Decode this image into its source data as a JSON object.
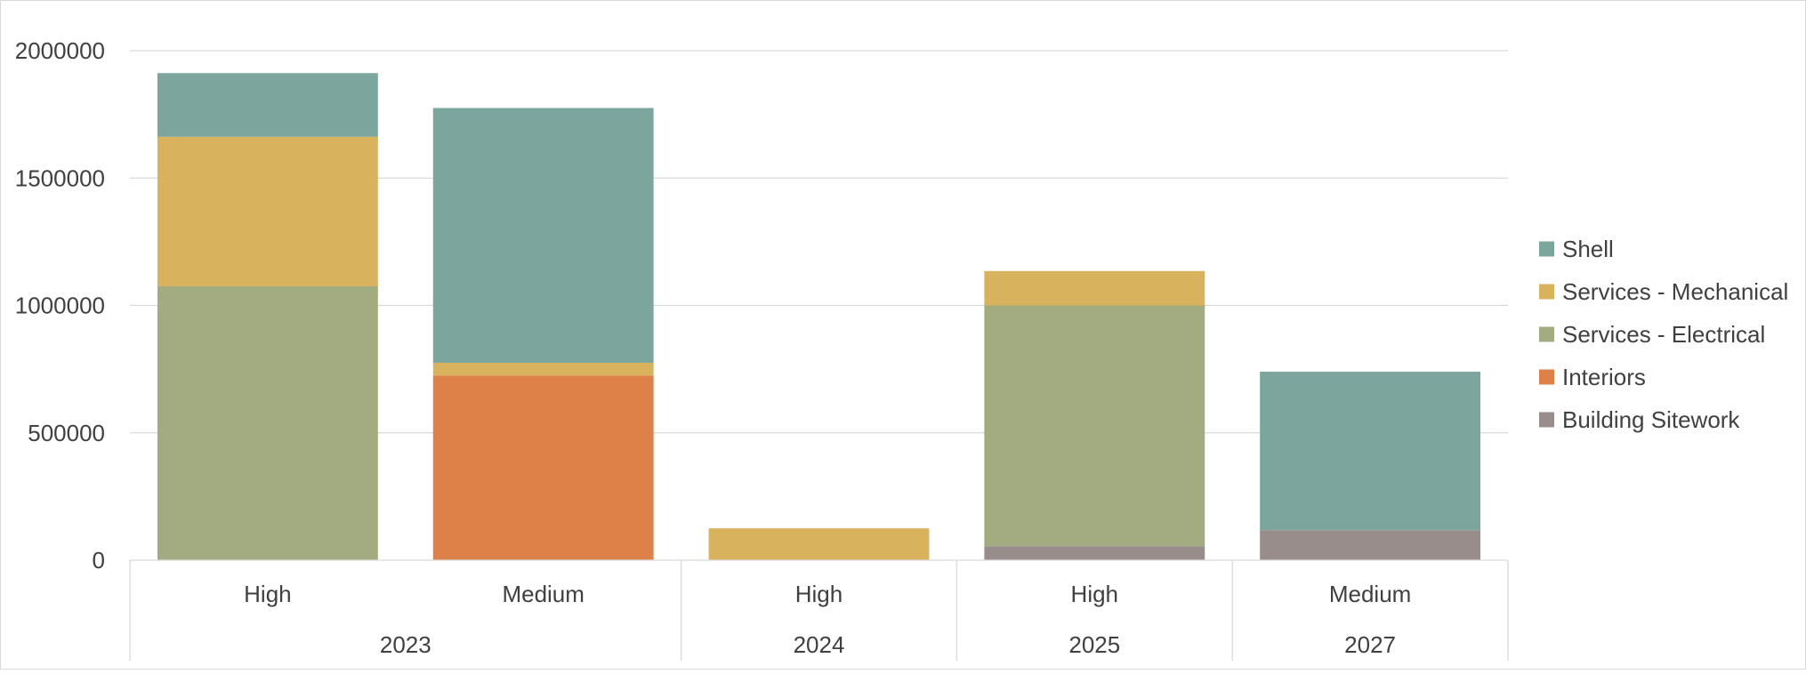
{
  "chart_data": {
    "type": "bar",
    "stacked": true,
    "categories": [
      "High",
      "Medium",
      "High",
      "High",
      "Medium"
    ],
    "groups": [
      {
        "label": "2023",
        "span": 2
      },
      {
        "label": "2024",
        "span": 1
      },
      {
        "label": "2025",
        "span": 1
      },
      {
        "label": "2027",
        "span": 1
      }
    ],
    "series": [
      {
        "name": "Building Sitework",
        "color": "#998d8c",
        "values": [
          0,
          0,
          0,
          55000,
          118000
        ]
      },
      {
        "name": "Interiors",
        "color": "#de8148",
        "values": [
          0,
          725000,
          0,
          0,
          0
        ]
      },
      {
        "name": "Services - Electrical",
        "color": "#a3ac80",
        "values": [
          1075000,
          0,
          0,
          945000,
          0
        ]
      },
      {
        "name": "Services - Mechanical",
        "color": "#d8b25c",
        "values": [
          587000,
          50000,
          125000,
          135000,
          0
        ]
      },
      {
        "name": "Shell",
        "color": "#7ca69d",
        "values": [
          250000,
          1000000,
          0,
          0,
          622000
        ]
      }
    ],
    "legend_order": [
      "Shell",
      "Services - Mechanical",
      "Services - Electrical",
      "Interiors",
      "Building Sitework"
    ],
    "ylim": [
      0,
      2000000
    ],
    "yticks": [
      0,
      500000,
      1000000,
      1500000,
      2000000
    ],
    "ytick_labels": [
      "0",
      "500000",
      "1000000",
      "1500000",
      "2000000"
    ],
    "grid": true,
    "legend_position": "right",
    "title": "",
    "xlabel": "",
    "ylabel": ""
  }
}
